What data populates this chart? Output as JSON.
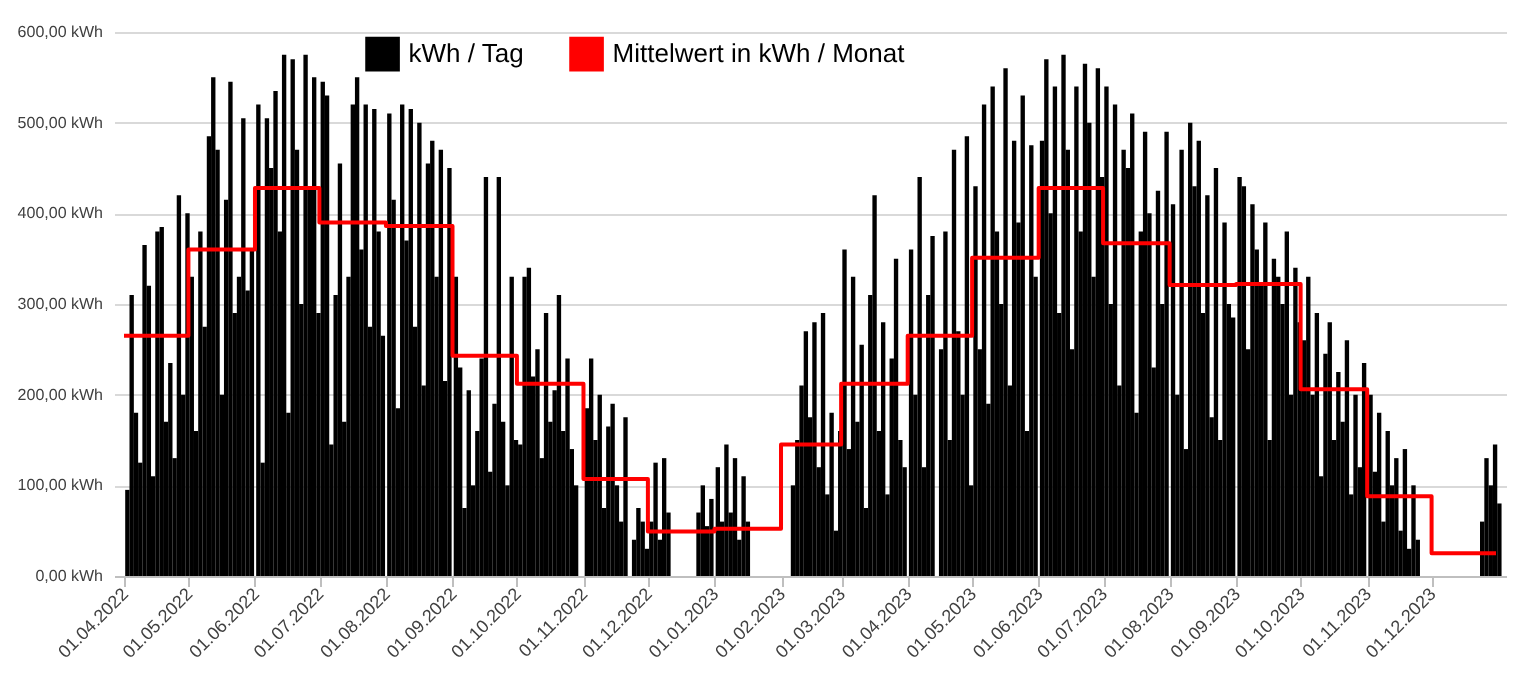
{
  "chart_data": {
    "type": "bar",
    "xlim": [
      "2022-04-01",
      "2023-12-31"
    ],
    "ylim": [
      0,
      600
    ],
    "yticks": [
      {
        "value": 0,
        "label": "0,00 kWh"
      },
      {
        "value": 100,
        "label": "100,00 kWh"
      },
      {
        "value": 200,
        "label": "200,00 kWh"
      },
      {
        "value": 300,
        "label": "300,00 kWh"
      },
      {
        "value": 400,
        "label": "400,00 kWh"
      },
      {
        "value": 500,
        "label": "500,00 kWh"
      },
      {
        "value": 600,
        "label": "600,00 kWh"
      }
    ],
    "xticks": [
      {
        "value": "2022-04-01",
        "label": "01.04.2022"
      },
      {
        "value": "2022-05-01",
        "label": "01.05.2022"
      },
      {
        "value": "2022-06-01",
        "label": "01.06.2022"
      },
      {
        "value": "2022-07-01",
        "label": "01.07.2022"
      },
      {
        "value": "2022-08-01",
        "label": "01.08.2022"
      },
      {
        "value": "2022-09-01",
        "label": "01.09.2022"
      },
      {
        "value": "2022-10-01",
        "label": "01.10.2022"
      },
      {
        "value": "2022-11-01",
        "label": "01.11.2022"
      },
      {
        "value": "2022-12-01",
        "label": "01.12.2022"
      },
      {
        "value": "2023-01-01",
        "label": "01.01.2023"
      },
      {
        "value": "2023-02-01",
        "label": "01.02.2023"
      },
      {
        "value": "2023-03-01",
        "label": "01.03.2023"
      },
      {
        "value": "2023-04-01",
        "label": "01.04.2023"
      },
      {
        "value": "2023-05-01",
        "label": "01.05.2023"
      },
      {
        "value": "2023-06-01",
        "label": "01.06.2023"
      },
      {
        "value": "2023-07-01",
        "label": "01.07.2023"
      },
      {
        "value": "2023-08-01",
        "label": "01.08.2023"
      },
      {
        "value": "2023-09-01",
        "label": "01.09.2023"
      },
      {
        "value": "2023-10-01",
        "label": "01.10.2023"
      },
      {
        "value": "2023-11-01",
        "label": "01.11.2023"
      },
      {
        "value": "2023-12-01",
        "label": "01.12.2023"
      }
    ],
    "grid": "y",
    "legend": "top",
    "series": [
      {
        "name": "kWh / Tag",
        "color": "#000000",
        "x": [
          "2022-04-01",
          "2022-04-03",
          "2022-04-05",
          "2022-04-07",
          "2022-04-09",
          "2022-04-11",
          "2022-04-13",
          "2022-04-15",
          "2022-04-17",
          "2022-04-19",
          "2022-04-21",
          "2022-04-23",
          "2022-04-25",
          "2022-04-27",
          "2022-04-29",
          "2022-05-01",
          "2022-05-03",
          "2022-05-05",
          "2022-05-07",
          "2022-05-09",
          "2022-05-11",
          "2022-05-13",
          "2022-05-15",
          "2022-05-17",
          "2022-05-19",
          "2022-05-21",
          "2022-05-23",
          "2022-05-25",
          "2022-05-27",
          "2022-05-29",
          "2022-06-01",
          "2022-06-03",
          "2022-06-05",
          "2022-06-07",
          "2022-06-09",
          "2022-06-11",
          "2022-06-13",
          "2022-06-15",
          "2022-06-17",
          "2022-06-19",
          "2022-06-21",
          "2022-06-23",
          "2022-06-25",
          "2022-06-27",
          "2022-06-29",
          "2022-07-01",
          "2022-07-03",
          "2022-07-05",
          "2022-07-07",
          "2022-07-09",
          "2022-07-11",
          "2022-07-13",
          "2022-07-15",
          "2022-07-17",
          "2022-07-19",
          "2022-07-21",
          "2022-07-23",
          "2022-07-25",
          "2022-07-27",
          "2022-07-29",
          "2022-08-01",
          "2022-08-03",
          "2022-08-05",
          "2022-08-07",
          "2022-08-09",
          "2022-08-11",
          "2022-08-13",
          "2022-08-15",
          "2022-08-17",
          "2022-08-19",
          "2022-08-21",
          "2022-08-23",
          "2022-08-25",
          "2022-08-27",
          "2022-08-29",
          "2022-09-01",
          "2022-09-03",
          "2022-09-05",
          "2022-09-07",
          "2022-09-09",
          "2022-09-11",
          "2022-09-13",
          "2022-09-15",
          "2022-09-17",
          "2022-09-19",
          "2022-09-21",
          "2022-09-23",
          "2022-09-25",
          "2022-09-27",
          "2022-09-29",
          "2022-10-01",
          "2022-10-03",
          "2022-10-05",
          "2022-10-07",
          "2022-10-09",
          "2022-10-11",
          "2022-10-13",
          "2022-10-15",
          "2022-10-17",
          "2022-10-19",
          "2022-10-21",
          "2022-10-23",
          "2022-10-25",
          "2022-10-27",
          "2022-10-29",
          "2022-11-01",
          "2022-11-03",
          "2022-11-05",
          "2022-11-07",
          "2022-11-09",
          "2022-11-11",
          "2022-11-13",
          "2022-11-15",
          "2022-11-17",
          "2022-11-19",
          "2022-11-21",
          "2022-11-23",
          "2022-11-25",
          "2022-11-27",
          "2022-11-29",
          "2022-12-01",
          "2022-12-03",
          "2022-12-05",
          "2022-12-07",
          "2022-12-09",
          "2022-12-11",
          "2022-12-13",
          "2022-12-15",
          "2022-12-17",
          "2022-12-19",
          "2022-12-21",
          "2022-12-23",
          "2022-12-25",
          "2022-12-27",
          "2022-12-29",
          "2023-01-01",
          "2023-01-03",
          "2023-01-05",
          "2023-01-07",
          "2023-01-09",
          "2023-01-11",
          "2023-01-13",
          "2023-01-15",
          "2023-01-17",
          "2023-01-19",
          "2023-01-21",
          "2023-01-23",
          "2023-01-25",
          "2023-01-27",
          "2023-01-29",
          "2023-02-01",
          "2023-02-03",
          "2023-02-05",
          "2023-02-07",
          "2023-02-09",
          "2023-02-11",
          "2023-02-13",
          "2023-02-15",
          "2023-02-17",
          "2023-02-19",
          "2023-02-21",
          "2023-02-23",
          "2023-02-25",
          "2023-02-27",
          "2023-03-01",
          "2023-03-03",
          "2023-03-05",
          "2023-03-07",
          "2023-03-09",
          "2023-03-11",
          "2023-03-13",
          "2023-03-15",
          "2023-03-17",
          "2023-03-19",
          "2023-03-21",
          "2023-03-23",
          "2023-03-25",
          "2023-03-27",
          "2023-03-29",
          "2023-04-01",
          "2023-04-03",
          "2023-04-05",
          "2023-04-07",
          "2023-04-09",
          "2023-04-11",
          "2023-04-13",
          "2023-04-15",
          "2023-04-17",
          "2023-04-19",
          "2023-04-21",
          "2023-04-23",
          "2023-04-25",
          "2023-04-27",
          "2023-04-29",
          "2023-05-01",
          "2023-05-03",
          "2023-05-05",
          "2023-05-07",
          "2023-05-09",
          "2023-05-11",
          "2023-05-13",
          "2023-05-15",
          "2023-05-17",
          "2023-05-19",
          "2023-05-21",
          "2023-05-23",
          "2023-05-25",
          "2023-05-27",
          "2023-05-29",
          "2023-06-01",
          "2023-06-03",
          "2023-06-05",
          "2023-06-07",
          "2023-06-09",
          "2023-06-11",
          "2023-06-13",
          "2023-06-15",
          "2023-06-17",
          "2023-06-19",
          "2023-06-21",
          "2023-06-23",
          "2023-06-25",
          "2023-06-27",
          "2023-06-29",
          "2023-07-01",
          "2023-07-03",
          "2023-07-05",
          "2023-07-07",
          "2023-07-09",
          "2023-07-11",
          "2023-07-13",
          "2023-07-15",
          "2023-07-17",
          "2023-07-19",
          "2023-07-21",
          "2023-07-23",
          "2023-07-25",
          "2023-07-27",
          "2023-07-29",
          "2023-08-01",
          "2023-08-03",
          "2023-08-05",
          "2023-08-07",
          "2023-08-09",
          "2023-08-11",
          "2023-08-13",
          "2023-08-15",
          "2023-08-17",
          "2023-08-19",
          "2023-08-21",
          "2023-08-23",
          "2023-08-25",
          "2023-08-27",
          "2023-08-29",
          "2023-09-01",
          "2023-09-03",
          "2023-09-05",
          "2023-09-07",
          "2023-09-09",
          "2023-09-11",
          "2023-09-13",
          "2023-09-15",
          "2023-09-17",
          "2023-09-19",
          "2023-09-21",
          "2023-09-23",
          "2023-09-25",
          "2023-09-27",
          "2023-09-29",
          "2023-10-01",
          "2023-10-03",
          "2023-10-05",
          "2023-10-07",
          "2023-10-09",
          "2023-10-11",
          "2023-10-13",
          "2023-10-15",
          "2023-10-17",
          "2023-10-19",
          "2023-10-21",
          "2023-10-23",
          "2023-10-25",
          "2023-10-27",
          "2023-10-29",
          "2023-11-01",
          "2023-11-03",
          "2023-11-05",
          "2023-11-07",
          "2023-11-09",
          "2023-11-11",
          "2023-11-13",
          "2023-11-15",
          "2023-11-17",
          "2023-11-19",
          "2023-11-21",
          "2023-11-23",
          "2023-11-25",
          "2023-11-27",
          "2023-11-29",
          "2023-12-01",
          "2023-12-03",
          "2023-12-05",
          "2023-12-07",
          "2023-12-09",
          "2023-12-11",
          "2023-12-13",
          "2023-12-15",
          "2023-12-17",
          "2023-12-19",
          "2023-12-21",
          "2023-12-23",
          "2023-12-25",
          "2023-12-27",
          "2023-12-29",
          "2023-12-31"
        ],
        "values": [
          95,
          310,
          180,
          125,
          365,
          320,
          110,
          380,
          385,
          170,
          235,
          130,
          420,
          200,
          400,
          330,
          160,
          380,
          275,
          485,
          550,
          470,
          200,
          415,
          545,
          290,
          330,
          505,
          315,
          360,
          520,
          125,
          505,
          450,
          535,
          380,
          575,
          180,
          570,
          470,
          300,
          575,
          430,
          550,
          290,
          545,
          530,
          145,
          310,
          455,
          170,
          330,
          520,
          550,
          360,
          520,
          275,
          515,
          380,
          265,
          510,
          415,
          185,
          520,
          370,
          515,
          275,
          500,
          210,
          455,
          480,
          330,
          470,
          215,
          450,
          330,
          230,
          75,
          205,
          100,
          160,
          240,
          440,
          115,
          190,
          440,
          170,
          100,
          330,
          150,
          145,
          330,
          340,
          220,
          250,
          130,
          290,
          170,
          205,
          310,
          160,
          240,
          140,
          100,
          0,
          185,
          240,
          150,
          200,
          75,
          165,
          190,
          100,
          60,
          175,
          0,
          40,
          75,
          60,
          30,
          60,
          125,
          40,
          130,
          70,
          0,
          0,
          0,
          0,
          0,
          0,
          70,
          100,
          55,
          85,
          120,
          60,
          145,
          70,
          130,
          40,
          110,
          60,
          0,
          0,
          0,
          0,
          0,
          0,
          0,
          0,
          0,
          100,
          150,
          210,
          270,
          175,
          280,
          120,
          290,
          90,
          180,
          50,
          160,
          360,
          140,
          330,
          170,
          255,
          75,
          310,
          420,
          160,
          280,
          90,
          240,
          350,
          150,
          120,
          360,
          200,
          440,
          120,
          310,
          375,
          0,
          250,
          380,
          150,
          470,
          270,
          200,
          485,
          100,
          430,
          250,
          520,
          190,
          540,
          380,
          300,
          560,
          210,
          480,
          390,
          530,
          160,
          475,
          330,
          480,
          570,
          400,
          540,
          290,
          575,
          470,
          250,
          540,
          380,
          565,
          500,
          330,
          560,
          440,
          540,
          300,
          520,
          210,
          470,
          450,
          510,
          180,
          380,
          490,
          400,
          230,
          425,
          300,
          490,
          410,
          200,
          470,
          140,
          500,
          430,
          480,
          290,
          420,
          175,
          450,
          150,
          390,
          300,
          285,
          440,
          430,
          250,
          410,
          360,
          320,
          390,
          150,
          350,
          330,
          300,
          380,
          200,
          340,
          280,
          260,
          330,
          200,
          290,
          110,
          245,
          280,
          150,
          225,
          170,
          260,
          90,
          200,
          120,
          235,
          200,
          115,
          180,
          60,
          160,
          100,
          130,
          50,
          140,
          30,
          100,
          40,
          0,
          0,
          0,
          0,
          0,
          0,
          0,
          0,
          0,
          0,
          0,
          0,
          0,
          0,
          60,
          130,
          100,
          145,
          80
        ]
      },
      {
        "name": "Mittelwert in kWh / Monat",
        "type": "step",
        "color": "#ff0000",
        "x": [
          "2022-04-01",
          "2022-05-01",
          "2022-06-01",
          "2022-07-01",
          "2022-08-01",
          "2022-09-01",
          "2022-10-01",
          "2022-11-01",
          "2022-12-01",
          "2023-01-01",
          "2023-02-01",
          "2023-03-01",
          "2023-04-01",
          "2023-05-01",
          "2023-06-01",
          "2023-07-01",
          "2023-08-01",
          "2023-09-01",
          "2023-10-01",
          "2023-11-01",
          "2023-12-01",
          "2023-12-31"
        ],
        "values": [
          265,
          360,
          428,
          390,
          386,
          243,
          212,
          107,
          49,
          52,
          145,
          212,
          265,
          351,
          428,
          367,
          321,
          322,
          206,
          88,
          25,
          25
        ]
      }
    ]
  }
}
